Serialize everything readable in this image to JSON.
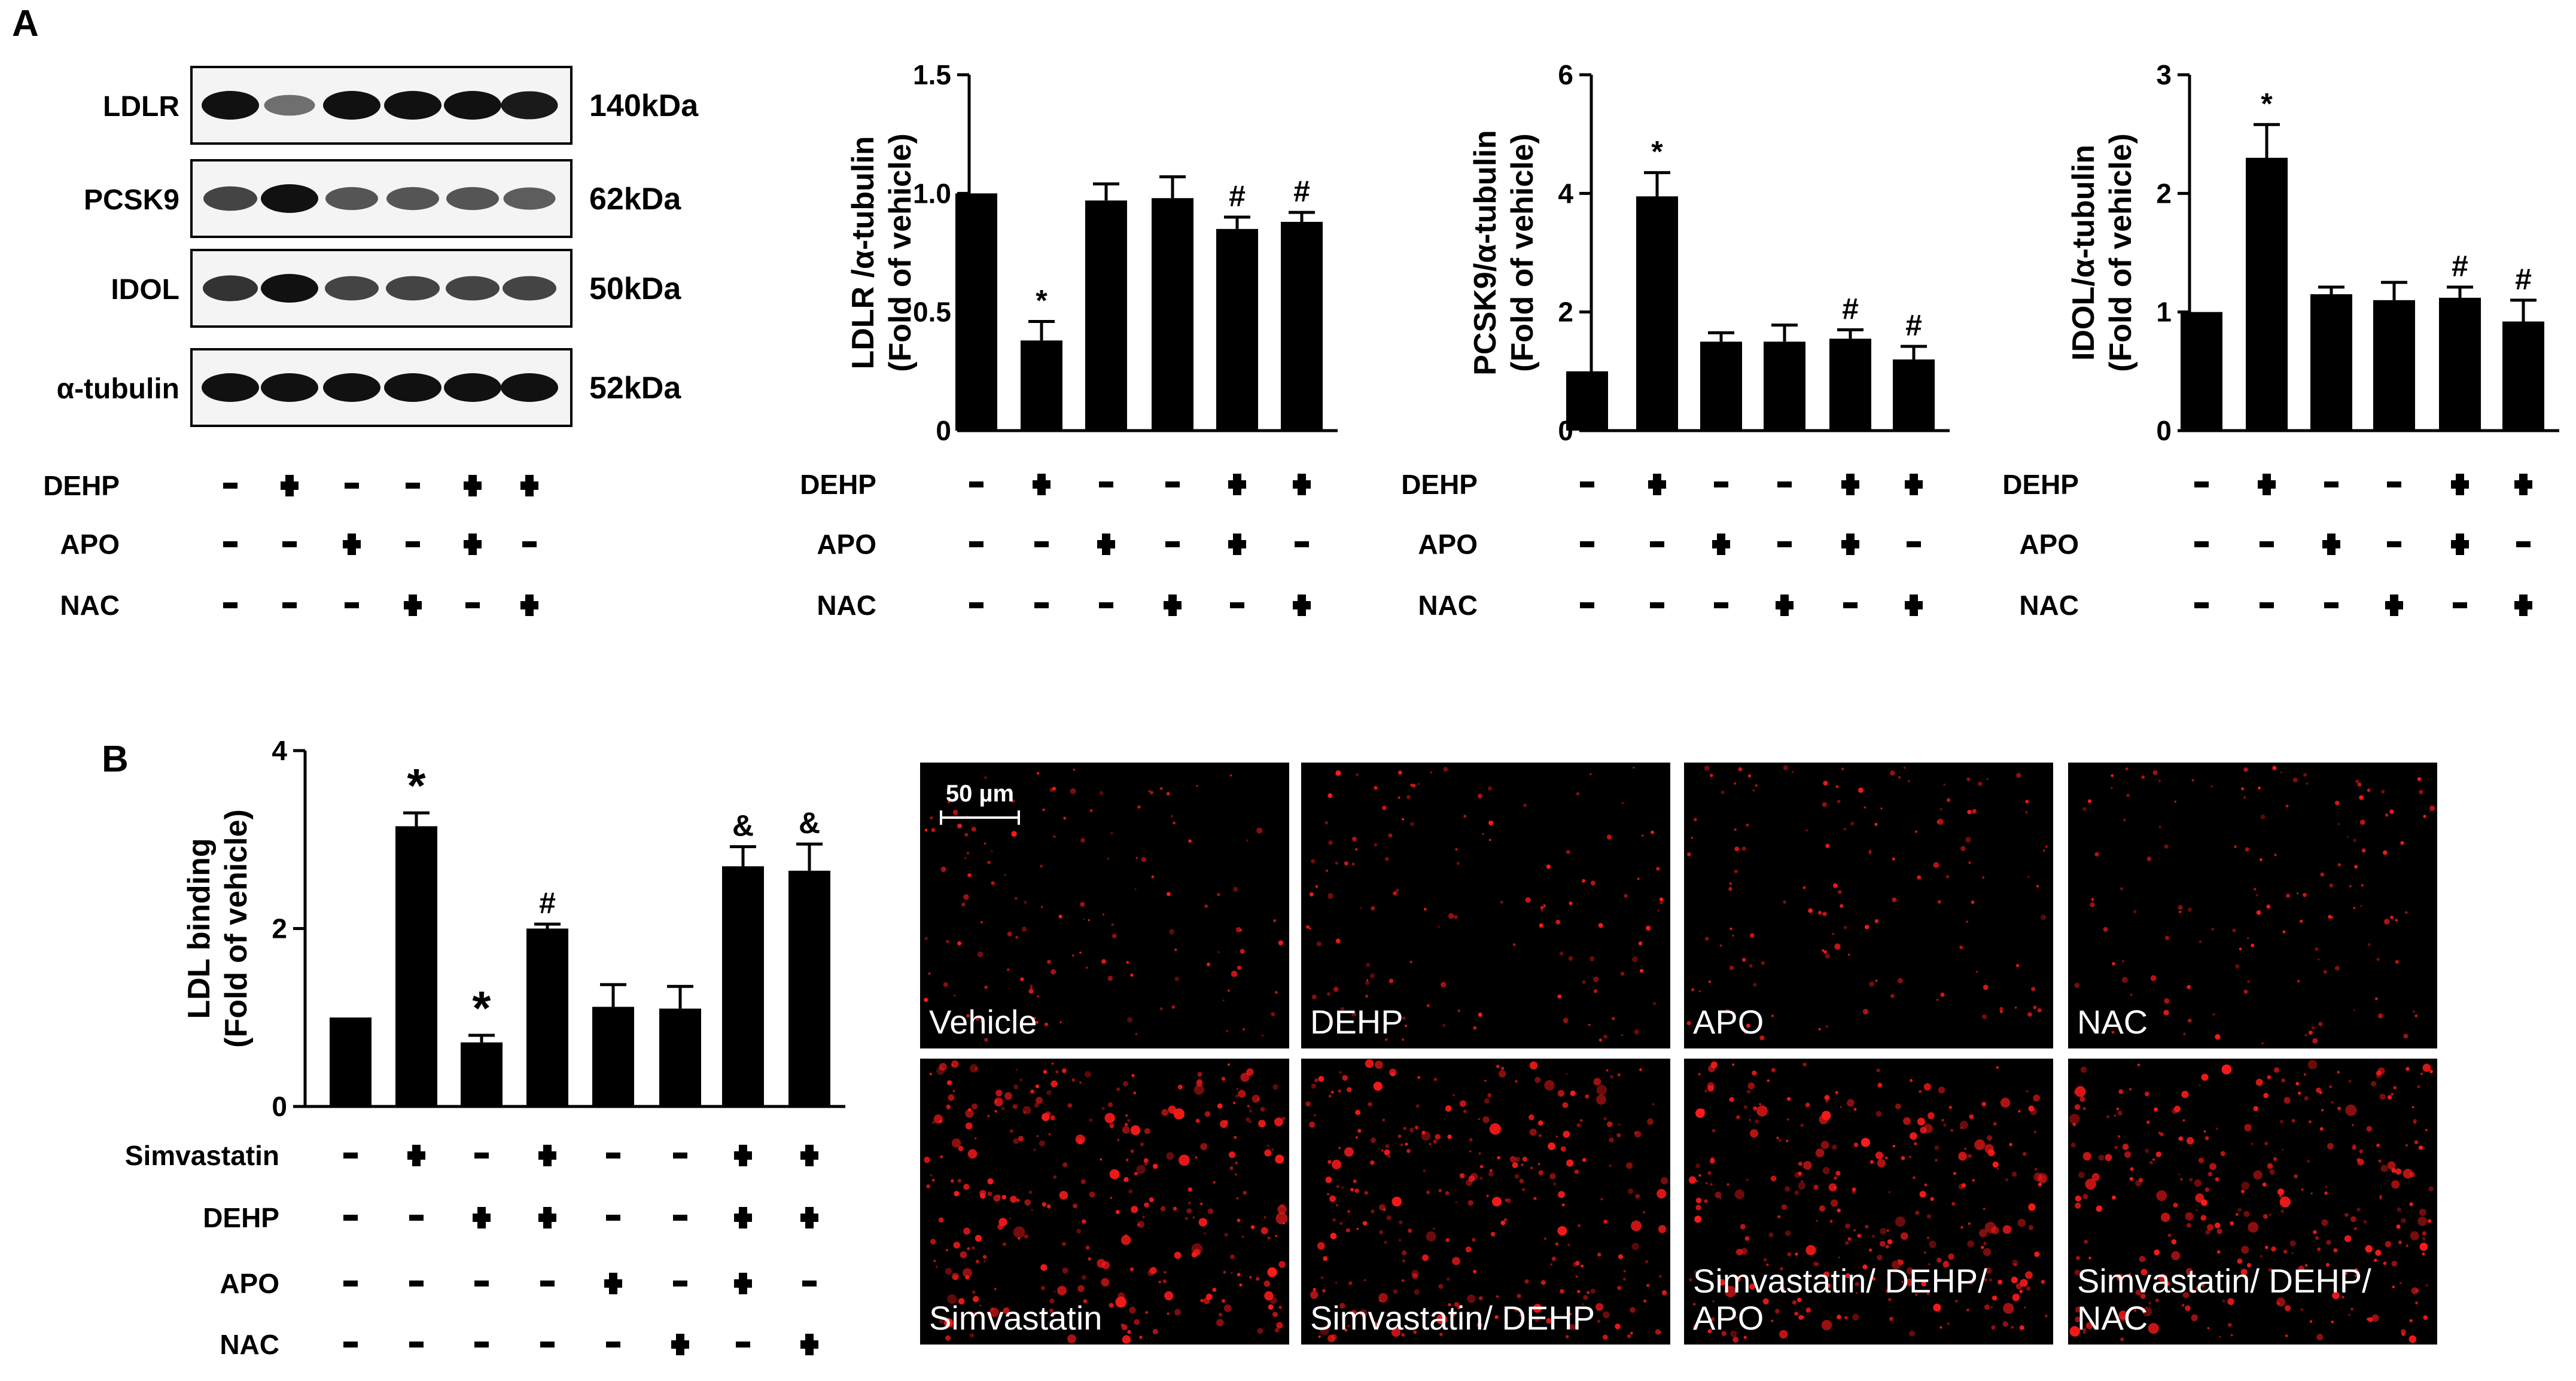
{
  "panel_labels": {
    "A": "A",
    "B": "B"
  },
  "western_blot": {
    "bands": [
      {
        "name": "LDLR",
        "kda": "140kDa",
        "intensity": [
          1.0,
          0.45,
          1.0,
          1.0,
          1.0,
          0.95
        ]
      },
      {
        "name": "PCSK9",
        "kda": "62kDa",
        "intensity": [
          0.7,
          1.0,
          0.6,
          0.6,
          0.6,
          0.55
        ]
      },
      {
        "name": "IDOL",
        "kda": "50kDa",
        "intensity": [
          0.8,
          1.0,
          0.7,
          0.7,
          0.7,
          0.7
        ]
      },
      {
        "name": "α-tubulin",
        "kda": "52kDa",
        "intensity": [
          1.0,
          1.0,
          1.0,
          1.0,
          1.0,
          1.0
        ]
      }
    ],
    "treatments": [
      {
        "name": "DEHP",
        "signs": [
          "−",
          "+",
          "−",
          "−",
          "+",
          "+"
        ]
      },
      {
        "name": "APO",
        "signs": [
          "−",
          "−",
          "+",
          "−",
          "+",
          "−"
        ]
      },
      {
        "name": "NAC",
        "signs": [
          "−",
          "−",
          "−",
          "+",
          "−",
          "+"
        ]
      }
    ]
  },
  "chart_data": [
    {
      "type": "bar",
      "ylabel": "LDLR /α-tubulin",
      "ylabel2": "(Fold of vehicle)",
      "ylim": [
        0,
        1.5
      ],
      "yticks": [
        0,
        0.5,
        1.0,
        1.5
      ],
      "ytick_labels": [
        "0",
        "0.5",
        "1.0",
        "1.5"
      ],
      "values": [
        1.0,
        0.38,
        0.97,
        0.98,
        0.85,
        0.88
      ],
      "errors": [
        0,
        0.08,
        0.07,
        0.09,
        0.05,
        0.04
      ],
      "annotations": [
        "",
        "*",
        "",
        "",
        "#",
        "#"
      ],
      "treatments": [
        {
          "name": "DEHP",
          "signs": [
            "−",
            "+",
            "−",
            "−",
            "+",
            "+"
          ]
        },
        {
          "name": "APO",
          "signs": [
            "−",
            "−",
            "+",
            "−",
            "+",
            "−"
          ]
        },
        {
          "name": "NAC",
          "signs": [
            "−",
            "−",
            "−",
            "+",
            "−",
            "+"
          ]
        }
      ]
    },
    {
      "type": "bar",
      "ylabel": "PCSK9/α-tubulin",
      "ylabel2": "(Fold of vehicle)",
      "ylim": [
        0,
        6
      ],
      "yticks": [
        0,
        2,
        4,
        6
      ],
      "ytick_labels": [
        "0",
        "2",
        "4",
        "6"
      ],
      "values": [
        1.0,
        3.95,
        1.5,
        1.5,
        1.55,
        1.2
      ],
      "errors": [
        0,
        0.4,
        0.15,
        0.28,
        0.15,
        0.22
      ],
      "annotations": [
        "",
        "*",
        "",
        "",
        "#",
        "#"
      ],
      "treatments": [
        {
          "name": "DEHP",
          "signs": [
            "−",
            "+",
            "−",
            "−",
            "+",
            "+"
          ]
        },
        {
          "name": "APO",
          "signs": [
            "−",
            "−",
            "+",
            "−",
            "+",
            "−"
          ]
        },
        {
          "name": "NAC",
          "signs": [
            "−",
            "−",
            "−",
            "+",
            "−",
            "+"
          ]
        }
      ]
    },
    {
      "type": "bar",
      "ylabel": "IDOL/α-tubulin",
      "ylabel2": "(Fold of vehicle)",
      "ylim": [
        0,
        3
      ],
      "yticks": [
        0,
        1,
        2,
        3
      ],
      "ytick_labels": [
        "0",
        "1",
        "2",
        "3"
      ],
      "values": [
        1.0,
        2.3,
        1.15,
        1.1,
        1.12,
        0.92
      ],
      "errors": [
        0,
        0.28,
        0.06,
        0.15,
        0.09,
        0.18
      ],
      "annotations": [
        "",
        "*",
        "",
        "",
        "#",
        "#"
      ],
      "treatments": [
        {
          "name": "DEHP",
          "signs": [
            "−",
            "+",
            "−",
            "−",
            "+",
            "+"
          ]
        },
        {
          "name": "APO",
          "signs": [
            "−",
            "−",
            "+",
            "−",
            "+",
            "−"
          ]
        },
        {
          "name": "NAC",
          "signs": [
            "−",
            "−",
            "−",
            "+",
            "−",
            "+"
          ]
        }
      ]
    },
    {
      "type": "bar",
      "ylabel": "LDL binding",
      "ylabel2": "(Fold of vehicle)",
      "ylim": [
        0,
        4
      ],
      "yticks": [
        0,
        2,
        4
      ],
      "ytick_labels": [
        "0",
        "2",
        "4"
      ],
      "values": [
        1.0,
        3.15,
        0.72,
        2.0,
        1.12,
        1.1,
        2.7,
        2.65
      ],
      "errors": [
        0,
        0.15,
        0.08,
        0.05,
        0.25,
        0.25,
        0.22,
        0.3
      ],
      "annotations": [
        "",
        "*",
        "*",
        "#",
        "",
        "",
        "&",
        "&"
      ],
      "treatments": [
        {
          "name": "Simvastatin",
          "signs": [
            "−",
            "+",
            "−",
            "+",
            "−",
            "−",
            "+",
            "+"
          ]
        },
        {
          "name": "DEHP",
          "signs": [
            "−",
            "−",
            "+",
            "+",
            "−",
            "−",
            "+",
            "+"
          ]
        },
        {
          "name": "APO",
          "signs": [
            "−",
            "−",
            "−",
            "−",
            "+",
            "−",
            "+",
            "−"
          ]
        },
        {
          "name": "NAC",
          "signs": [
            "−",
            "−",
            "−",
            "−",
            "−",
            "+",
            "−",
            "+"
          ]
        }
      ]
    }
  ],
  "micrographs": {
    "scale_bar": "50 µm",
    "colors": {
      "background": "#000000",
      "signal": "#ff1a1a"
    },
    "panels": [
      {
        "label": "Vehicle",
        "density": 0.3
      },
      {
        "label": "DEHP",
        "density": 0.28
      },
      {
        "label": "APO",
        "density": 0.3
      },
      {
        "label": "NAC",
        "density": 0.3
      },
      {
        "label": "Simvastatin",
        "density": 1.0
      },
      {
        "label": "Simvastatin/ DEHP",
        "density": 0.9
      },
      {
        "label": "Simvastatin/ DEHP/ APO",
        "density": 0.95
      },
      {
        "label": "Simvastatin/ DEHP/ NAC",
        "density": 0.95
      }
    ]
  }
}
